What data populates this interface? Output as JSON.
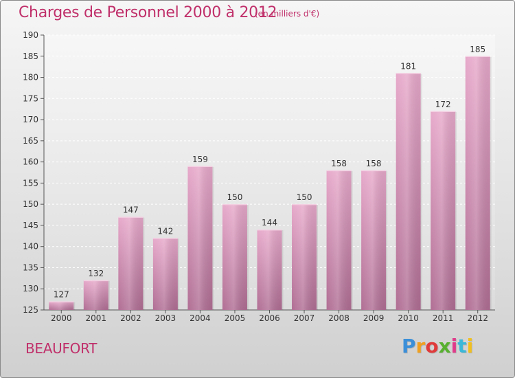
{
  "title": "Charges de Personnel 2000 à 2012",
  "subtitle": "(en milliers d'€)",
  "city": "BEAUFORT",
  "logo": {
    "text": "Proxiti",
    "colors": [
      "#3b8fd8",
      "#f0a020",
      "#e03a3a",
      "#58b030",
      "#e03a8a",
      "#3bb8d8",
      "#f0c020"
    ]
  },
  "colors": {
    "accent": "#c0306a",
    "bar": "#d98bb5"
  },
  "chart_data": {
    "type": "bar",
    "categories": [
      "2000",
      "2001",
      "2002",
      "2003",
      "2004",
      "2005",
      "2006",
      "2007",
      "2008",
      "2009",
      "2010",
      "2011",
      "2012"
    ],
    "values": [
      127,
      132,
      147,
      142,
      159,
      150,
      144,
      150,
      158,
      158,
      181,
      172,
      185
    ],
    "ylim": [
      125,
      190
    ],
    "yticks": [
      125,
      130,
      135,
      140,
      145,
      150,
      155,
      160,
      165,
      170,
      175,
      180,
      185,
      190
    ],
    "grid": true
  }
}
